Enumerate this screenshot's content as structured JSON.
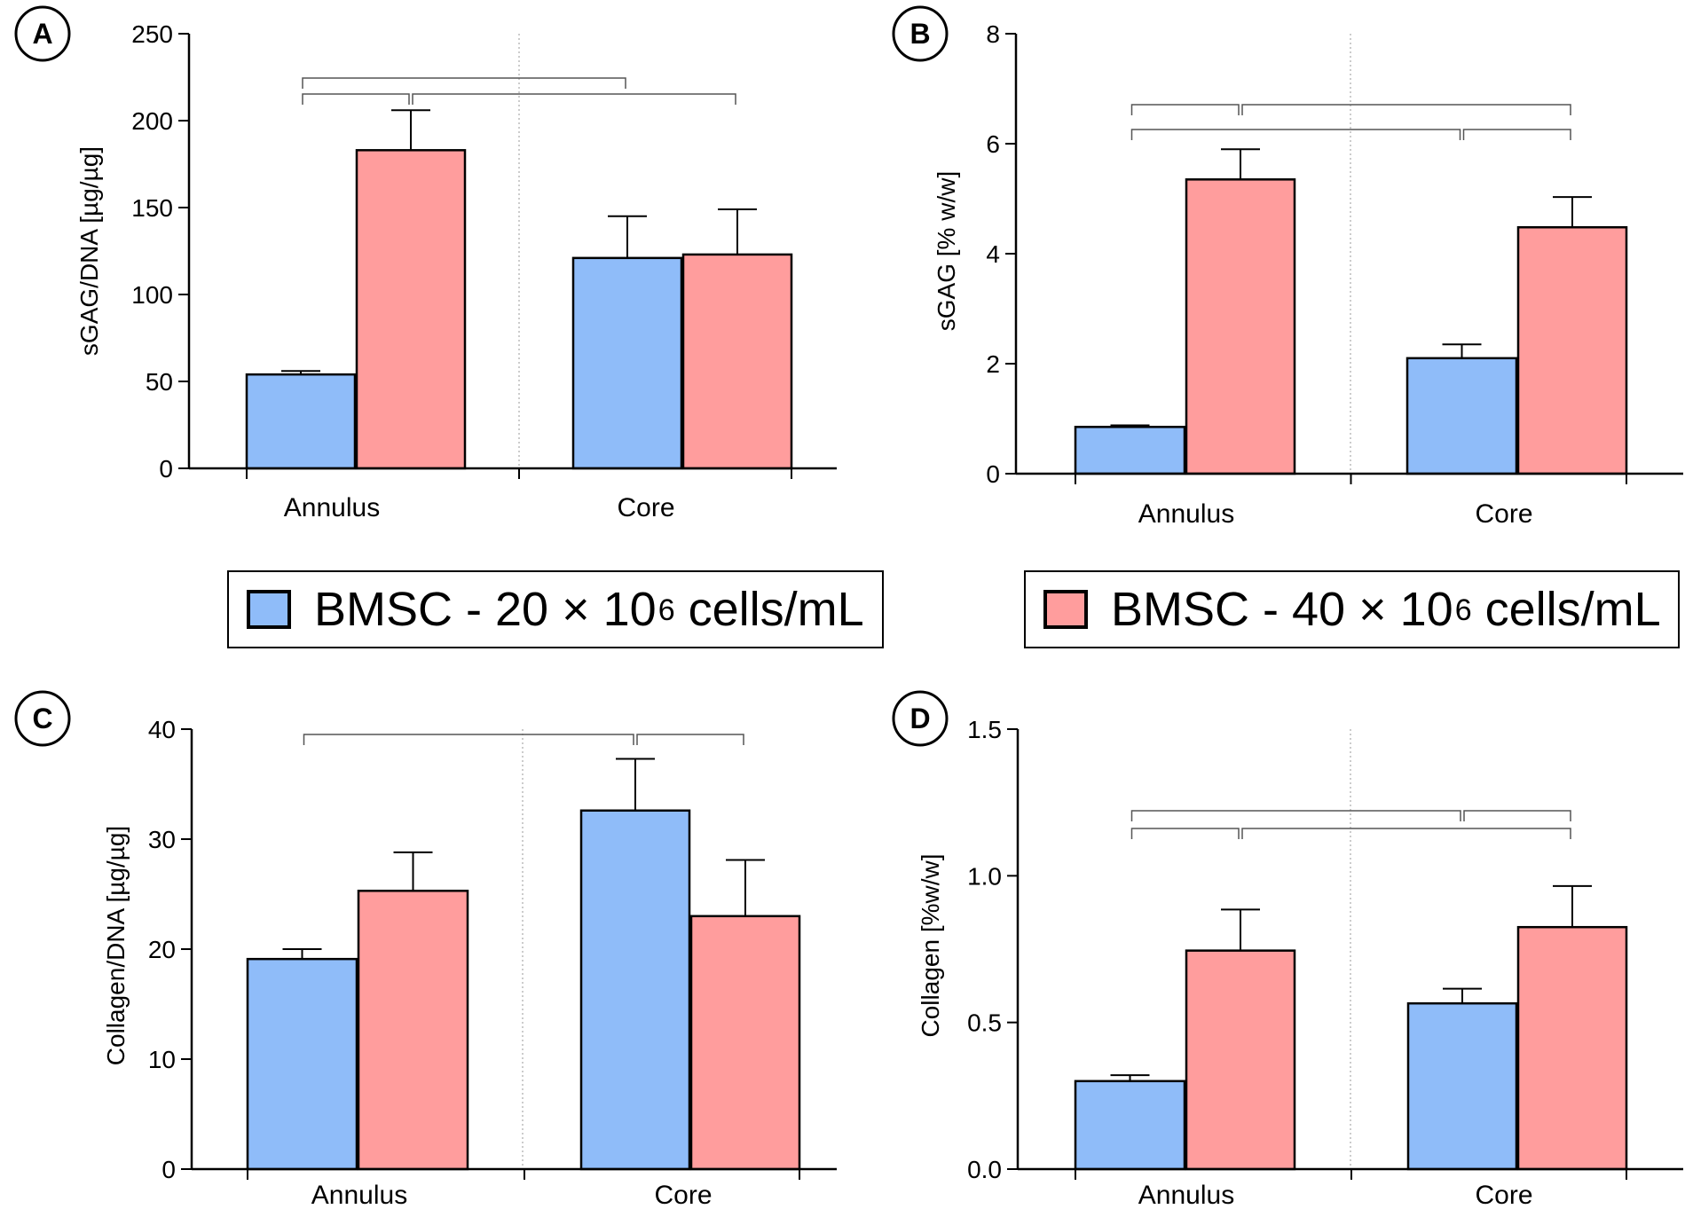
{
  "colors": {
    "series_1": "#8fbcf9",
    "series_2": "#ff9d9d",
    "axis": "#000000",
    "brackets": "#555555"
  },
  "legend": [
    {
      "prefix": "BMSC - 20 × 10",
      "sup": "6",
      "suffix": " cells/mL",
      "color": "#8fbcf9"
    },
    {
      "prefix": "BMSC - 40 × 10",
      "sup": "6",
      "suffix": " cells/mL",
      "color": "#ff9d9d"
    }
  ],
  "chart_data": [
    {
      "panel": "A",
      "type": "bar",
      "ylabel": "sGAG/DNA [µg/µg]",
      "categories": [
        "Annulus",
        "Core"
      ],
      "ylim": [
        0,
        250
      ],
      "yticks": [
        0,
        50,
        100,
        150,
        200,
        250
      ],
      "ytick_labels": [
        "0",
        "50",
        "100",
        "150",
        "200",
        "250"
      ],
      "series": [
        {
          "name": "BMSC - 20 × 10^6 cells/mL",
          "values": [
            54,
            121
          ],
          "errors": [
            2,
            24
          ]
        },
        {
          "name": "BMSC - 40 × 10^6 cells/mL",
          "values": [
            183,
            123
          ],
          "errors": [
            23,
            26
          ]
        }
      ],
      "brackets": [
        {
          "from": [
            0,
            0
          ],
          "to": [
            0,
            1
          ],
          "level": 2
        },
        {
          "from": [
            0,
            1
          ],
          "to": [
            1,
            1
          ],
          "level": 2
        },
        {
          "from": [
            0,
            0
          ],
          "to": [
            1,
            0
          ],
          "level": 1
        }
      ]
    },
    {
      "panel": "B",
      "type": "bar",
      "ylabel": "sGAG [% w/w]",
      "categories": [
        "Annulus",
        "Core"
      ],
      "ylim": [
        0,
        8
      ],
      "yticks": [
        0,
        2,
        4,
        6,
        8
      ],
      "ytick_labels": [
        "0",
        "2",
        "4",
        "6",
        "8"
      ],
      "series": [
        {
          "name": "BMSC - 20 × 10^6 cells/mL",
          "values": [
            0.85,
            2.1
          ],
          "errors": [
            0.03,
            0.25
          ]
        },
        {
          "name": "BMSC - 40 × 10^6 cells/mL",
          "values": [
            5.35,
            4.48
          ],
          "errors": [
            0.55,
            0.55
          ]
        }
      ],
      "brackets": [
        {
          "from": [
            0,
            0
          ],
          "to": [
            1,
            0
          ],
          "level": 2
        },
        {
          "from": [
            1,
            0
          ],
          "to": [
            1,
            1
          ],
          "level": 2
        },
        {
          "from": [
            0,
            0
          ],
          "to": [
            0,
            1
          ],
          "level": 1
        },
        {
          "from": [
            0,
            1
          ],
          "to": [
            1,
            1
          ],
          "level": 1
        }
      ]
    },
    {
      "panel": "C",
      "type": "bar",
      "ylabel": "Collagen/DNA [µg/µg]",
      "categories": [
        "Annulus",
        "Core"
      ],
      "ylim": [
        0,
        40
      ],
      "yticks": [
        0,
        10,
        20,
        30,
        40
      ],
      "ytick_labels": [
        "0",
        "10",
        "20",
        "30",
        "40"
      ],
      "series": [
        {
          "name": "BMSC - 20 × 10^6 cells/mL",
          "values": [
            19.1,
            32.6
          ],
          "errors": [
            0.9,
            4.7
          ]
        },
        {
          "name": "BMSC - 40 × 10^6 cells/mL",
          "values": [
            25.3,
            23.0
          ],
          "errors": [
            3.5,
            5.1
          ]
        }
      ],
      "brackets": [
        {
          "from": [
            0,
            0
          ],
          "to": [
            1,
            0
          ],
          "level": 1
        },
        {
          "from": [
            1,
            0
          ],
          "to": [
            1,
            1
          ],
          "level": 1
        }
      ]
    },
    {
      "panel": "D",
      "type": "bar",
      "ylabel": "Collagen [%w/w]",
      "categories": [
        "Annulus",
        "Core"
      ],
      "ylim": [
        0,
        1.5
      ],
      "yticks": [
        0,
        0.5,
        1.0,
        1.5
      ],
      "ytick_labels": [
        "0.0",
        "0.5",
        "1.0",
        "1.5"
      ],
      "series": [
        {
          "name": "BMSC - 20 × 10^6 cells/mL",
          "values": [
            0.3,
            0.565
          ],
          "errors": [
            0.02,
            0.05
          ]
        },
        {
          "name": "BMSC - 40 × 10^6 cells/mL",
          "values": [
            0.745,
            0.825
          ],
          "errors": [
            0.14,
            0.14
          ]
        }
      ],
      "brackets": [
        {
          "from": [
            0,
            0
          ],
          "to": [
            1,
            0
          ],
          "level": 2
        },
        {
          "from": [
            1,
            0
          ],
          "to": [
            1,
            1
          ],
          "level": 2
        },
        {
          "from": [
            0,
            0
          ],
          "to": [
            0,
            1
          ],
          "level": 1
        },
        {
          "from": [
            0,
            1
          ],
          "to": [
            1,
            1
          ],
          "level": 1
        }
      ]
    }
  ]
}
